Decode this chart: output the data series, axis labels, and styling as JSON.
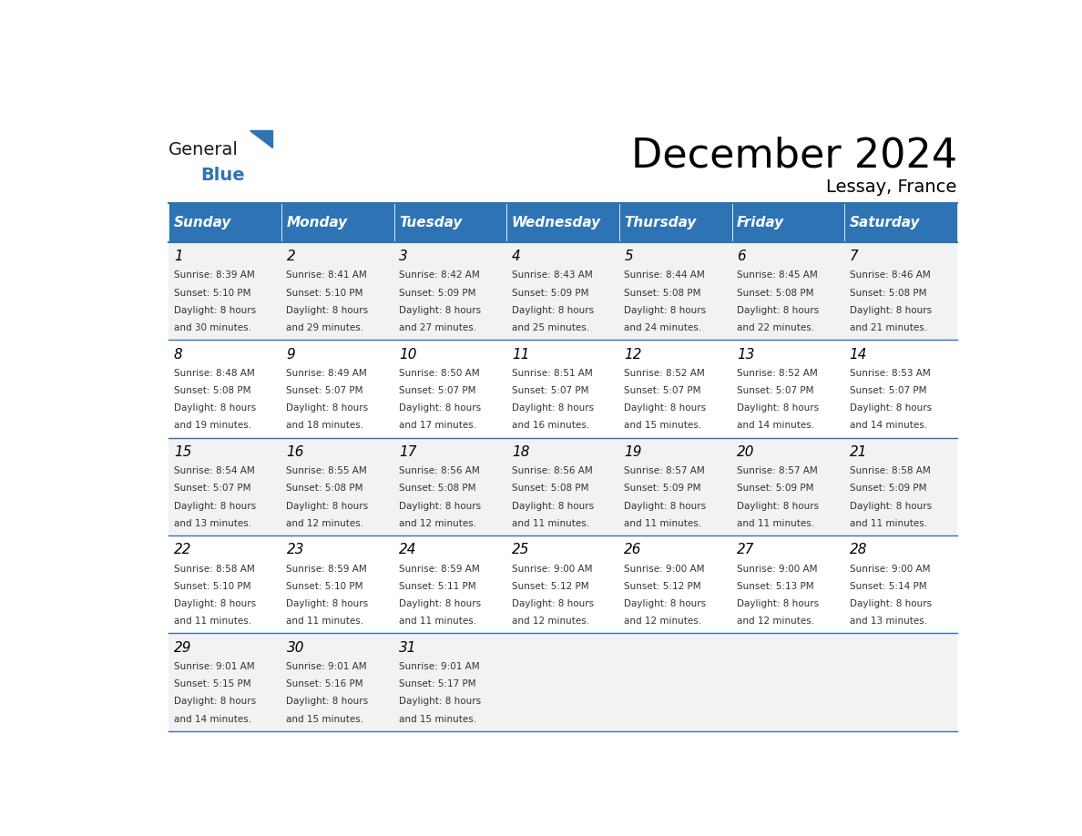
{
  "title": "December 2024",
  "subtitle": "Lessay, France",
  "header_bg": "#2E74B5",
  "header_text_color": "#FFFFFF",
  "day_names": [
    "Sunday",
    "Monday",
    "Tuesday",
    "Wednesday",
    "Thursday",
    "Friday",
    "Saturday"
  ],
  "cell_bg_even": "#F2F2F2",
  "cell_bg_odd": "#FFFFFF",
  "border_color": "#2E74B5",
  "text_color": "#000000",
  "day_num_color": "#000000",
  "logo_general_color": "#1a1a1a",
  "logo_blue_color": "#2E74B5",
  "weeks": [
    [
      {
        "day": 1,
        "sunrise": "8:39 AM",
        "sunset": "5:10 PM",
        "daylight": "8 hours and 30 minutes."
      },
      {
        "day": 2,
        "sunrise": "8:41 AM",
        "sunset": "5:10 PM",
        "daylight": "8 hours and 29 minutes."
      },
      {
        "day": 3,
        "sunrise": "8:42 AM",
        "sunset": "5:09 PM",
        "daylight": "8 hours and 27 minutes."
      },
      {
        "day": 4,
        "sunrise": "8:43 AM",
        "sunset": "5:09 PM",
        "daylight": "8 hours and 25 minutes."
      },
      {
        "day": 5,
        "sunrise": "8:44 AM",
        "sunset": "5:08 PM",
        "daylight": "8 hours and 24 minutes."
      },
      {
        "day": 6,
        "sunrise": "8:45 AM",
        "sunset": "5:08 PM",
        "daylight": "8 hours and 22 minutes."
      },
      {
        "day": 7,
        "sunrise": "8:46 AM",
        "sunset": "5:08 PM",
        "daylight": "8 hours and 21 minutes."
      }
    ],
    [
      {
        "day": 8,
        "sunrise": "8:48 AM",
        "sunset": "5:08 PM",
        "daylight": "8 hours and 19 minutes."
      },
      {
        "day": 9,
        "sunrise": "8:49 AM",
        "sunset": "5:07 PM",
        "daylight": "8 hours and 18 minutes."
      },
      {
        "day": 10,
        "sunrise": "8:50 AM",
        "sunset": "5:07 PM",
        "daylight": "8 hours and 17 minutes."
      },
      {
        "day": 11,
        "sunrise": "8:51 AM",
        "sunset": "5:07 PM",
        "daylight": "8 hours and 16 minutes."
      },
      {
        "day": 12,
        "sunrise": "8:52 AM",
        "sunset": "5:07 PM",
        "daylight": "8 hours and 15 minutes."
      },
      {
        "day": 13,
        "sunrise": "8:52 AM",
        "sunset": "5:07 PM",
        "daylight": "8 hours and 14 minutes."
      },
      {
        "day": 14,
        "sunrise": "8:53 AM",
        "sunset": "5:07 PM",
        "daylight": "8 hours and 14 minutes."
      }
    ],
    [
      {
        "day": 15,
        "sunrise": "8:54 AM",
        "sunset": "5:07 PM",
        "daylight": "8 hours and 13 minutes."
      },
      {
        "day": 16,
        "sunrise": "8:55 AM",
        "sunset": "5:08 PM",
        "daylight": "8 hours and 12 minutes."
      },
      {
        "day": 17,
        "sunrise": "8:56 AM",
        "sunset": "5:08 PM",
        "daylight": "8 hours and 12 minutes."
      },
      {
        "day": 18,
        "sunrise": "8:56 AM",
        "sunset": "5:08 PM",
        "daylight": "8 hours and 11 minutes."
      },
      {
        "day": 19,
        "sunrise": "8:57 AM",
        "sunset": "5:09 PM",
        "daylight": "8 hours and 11 minutes."
      },
      {
        "day": 20,
        "sunrise": "8:57 AM",
        "sunset": "5:09 PM",
        "daylight": "8 hours and 11 minutes."
      },
      {
        "day": 21,
        "sunrise": "8:58 AM",
        "sunset": "5:09 PM",
        "daylight": "8 hours and 11 minutes."
      }
    ],
    [
      {
        "day": 22,
        "sunrise": "8:58 AM",
        "sunset": "5:10 PM",
        "daylight": "8 hours and 11 minutes."
      },
      {
        "day": 23,
        "sunrise": "8:59 AM",
        "sunset": "5:10 PM",
        "daylight": "8 hours and 11 minutes."
      },
      {
        "day": 24,
        "sunrise": "8:59 AM",
        "sunset": "5:11 PM",
        "daylight": "8 hours and 11 minutes."
      },
      {
        "day": 25,
        "sunrise": "9:00 AM",
        "sunset": "5:12 PM",
        "daylight": "8 hours and 12 minutes."
      },
      {
        "day": 26,
        "sunrise": "9:00 AM",
        "sunset": "5:12 PM",
        "daylight": "8 hours and 12 minutes."
      },
      {
        "day": 27,
        "sunrise": "9:00 AM",
        "sunset": "5:13 PM",
        "daylight": "8 hours and 12 minutes."
      },
      {
        "day": 28,
        "sunrise": "9:00 AM",
        "sunset": "5:14 PM",
        "daylight": "8 hours and 13 minutes."
      }
    ],
    [
      {
        "day": 29,
        "sunrise": "9:01 AM",
        "sunset": "5:15 PM",
        "daylight": "8 hours and 14 minutes."
      },
      {
        "day": 30,
        "sunrise": "9:01 AM",
        "sunset": "5:16 PM",
        "daylight": "8 hours and 15 minutes."
      },
      {
        "day": 31,
        "sunrise": "9:01 AM",
        "sunset": "5:17 PM",
        "daylight": "8 hours and 15 minutes."
      },
      null,
      null,
      null,
      null
    ]
  ]
}
